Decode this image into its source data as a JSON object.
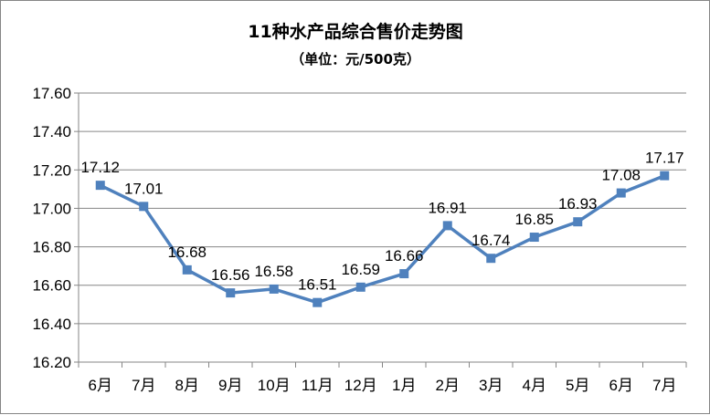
{
  "chart_data": {
    "type": "line",
    "title": "11种水产品综合售价走势图",
    "subtitle": "（单位：元/500克）",
    "categories": [
      "6月",
      "7月",
      "8月",
      "9月",
      "10月",
      "11月",
      "12月",
      "1月",
      "2月",
      "3月",
      "4月",
      "5月",
      "6月",
      "7月"
    ],
    "series": [
      {
        "values": [
          17.12,
          17.01,
          16.68,
          16.56,
          16.58,
          16.51,
          16.59,
          16.66,
          16.91,
          16.74,
          16.85,
          16.93,
          17.08,
          17.17
        ],
        "labels": [
          "17.12",
          "17.01",
          "16.68",
          "16.56",
          "16.58",
          "16.51",
          "16.59",
          "16.66",
          "16.91",
          "16.74",
          "16.85",
          "16.93",
          "17.08",
          "17.17"
        ]
      }
    ],
    "ylim": [
      16.2,
      17.6
    ],
    "yticks": [
      "16.20",
      "16.40",
      "16.60",
      "16.80",
      "17.00",
      "17.20",
      "17.40",
      "17.60"
    ],
    "grid": true,
    "legend": "none",
    "line_color": "#4F81BD",
    "marker_color": "#4F81BD",
    "marker": "square"
  }
}
